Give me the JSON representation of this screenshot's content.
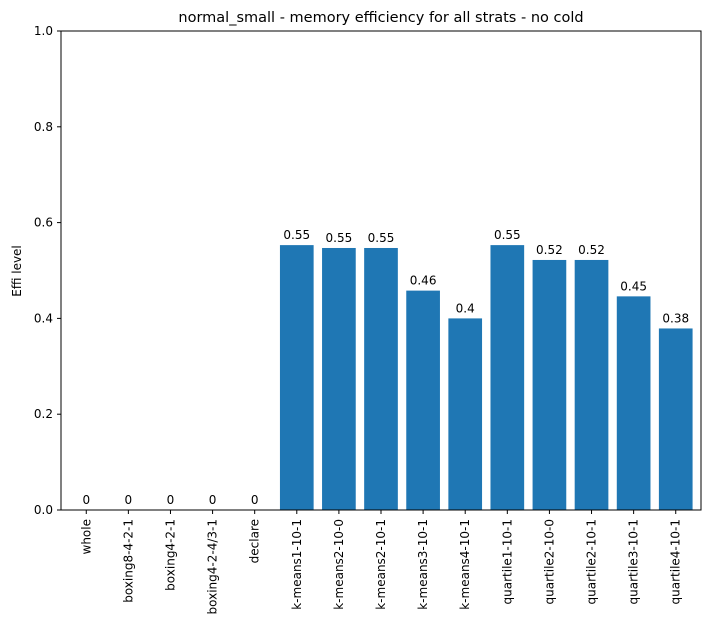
{
  "chart_data": {
    "type": "bar",
    "title": "normal_small - memory efficiency for all strats - no cold",
    "xlabel": "",
    "ylabel": "Effi level",
    "ylim": [
      0,
      1.0
    ],
    "yticks": [
      "0.0",
      "0.2",
      "0.4",
      "0.6",
      "0.8",
      "1.0"
    ],
    "grid": false,
    "bar_color": "#1f77b4",
    "categories": [
      "whole",
      "boxing8-4-2-1",
      "boxing4-2-1",
      "boxing4-2-4/3-1",
      "declare",
      "k-means1-10-1",
      "k-means2-10-0",
      "k-means2-10-1",
      "k-means3-10-1",
      "k-means4-10-1",
      "quartile1-10-1",
      "quartile2-10-0",
      "quartile2-10-1",
      "quartile3-10-1",
      "quartile4-10-1"
    ],
    "values": [
      0,
      0,
      0,
      0,
      0,
      0.553,
      0.547,
      0.547,
      0.458,
      0.4,
      0.553,
      0.522,
      0.522,
      0.446,
      0.379
    ],
    "value_labels": [
      "0",
      "0",
      "0",
      "0",
      "0",
      "0.55",
      "0.55",
      "0.55",
      "0.46",
      "0.4",
      "0.55",
      "0.52",
      "0.52",
      "0.45",
      "0.38"
    ]
  }
}
